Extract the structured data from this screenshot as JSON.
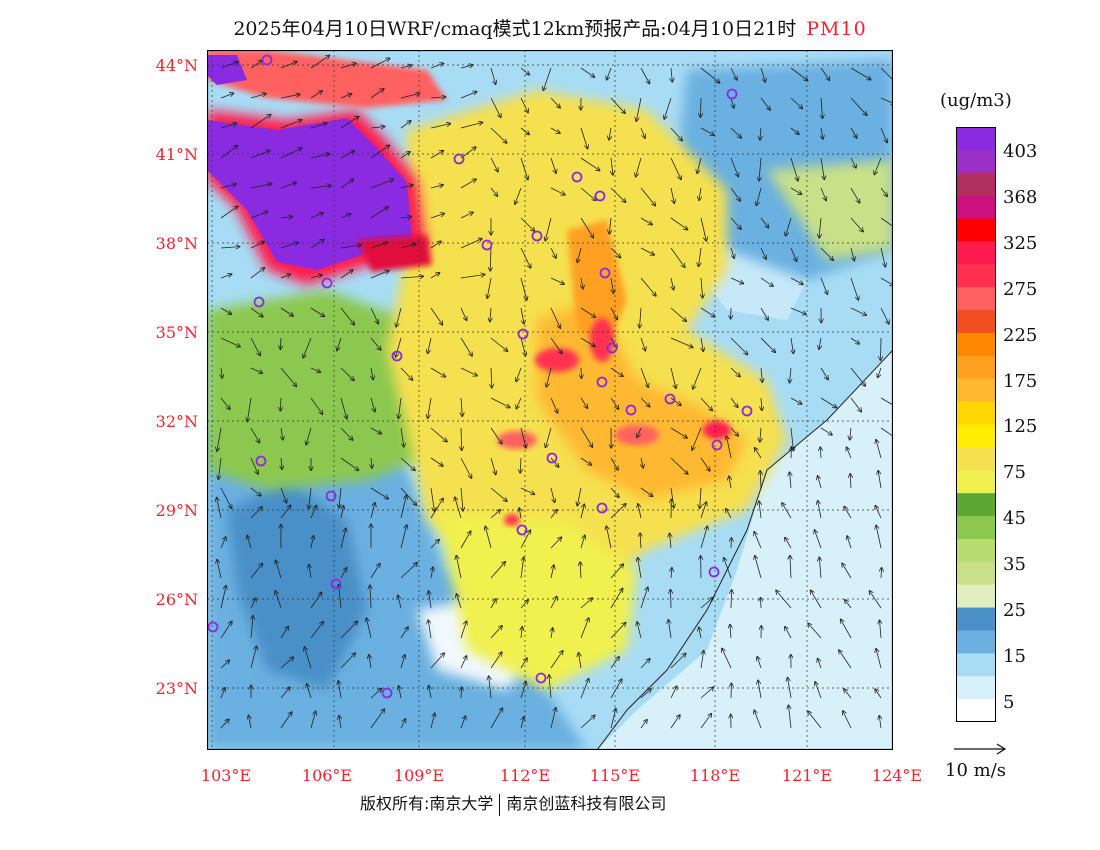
{
  "title": {
    "main": "2025年04月10日WRF/cmaq模式12km预报产品:04月10日21时",
    "pollutant": "PM10"
  },
  "axes": {
    "lat_labels": [
      "44°N",
      "41°N",
      "38°N",
      "35°N",
      "32°N",
      "29°N",
      "26°N",
      "23°N"
    ],
    "lon_labels": [
      "103°E",
      "106°E",
      "109°E",
      "112°E",
      "115°E",
      "118°E",
      "121°E",
      "124°E"
    ]
  },
  "legend": {
    "unit": "(ug/m3)",
    "labels": [
      "403",
      "368",
      "325",
      "275",
      "225",
      "175",
      "125",
      "75",
      "45",
      "35",
      "25",
      "15",
      "5"
    ],
    "colors": [
      "#8A2BE2",
      "#9B30C8",
      "#B03060",
      "#CC1080",
      "#FF0000",
      "#FF1A50",
      "#FF3050",
      "#FF6060",
      "#F05020",
      "#FF8800",
      "#FFA020",
      "#FFB830",
      "#FFD700",
      "#FFEE00",
      "#F5E050",
      "#F0F050",
      "#5DA832",
      "#8CC850",
      "#B8DC70",
      "#C8E088",
      "#E0EEC0",
      "#4A90C8",
      "#6BB0E0",
      "#A8DCF5",
      "#D8F0FA",
      "#FFFFFF"
    ]
  },
  "wind_key": {
    "label": "10 m/s"
  },
  "copyright": {
    "left": "版权所有:南京大学",
    "right": "南京创蓝科技有限公司"
  }
}
